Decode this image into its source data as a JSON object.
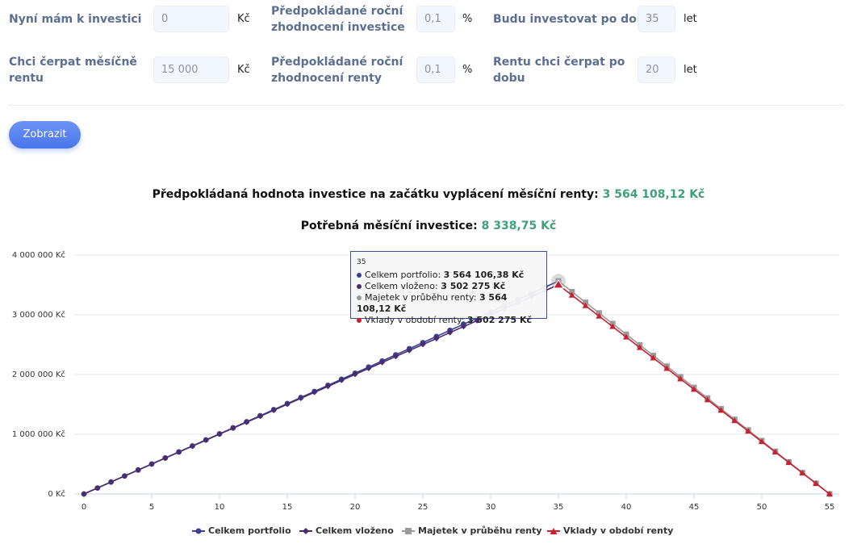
{
  "form": {
    "row1": {
      "invest_now_label": "Nyní mám k investici",
      "invest_now_value": "0",
      "invest_now_unit": "Kč",
      "rate_invest_label_l1": "Předpokládané roční",
      "rate_invest_label_l2": "zhodnocení investice",
      "rate_invest_value": "0,1",
      "rate_invest_unit": "%",
      "invest_years_label": "Budu investovat po dobu",
      "invest_years_value": "35",
      "invest_years_unit": "let"
    },
    "row2": {
      "rent_label_l1": "Chci čerpat měsíčně",
      "rent_label_l2": "rentu",
      "rent_value": "15 000",
      "rent_unit": "Kč",
      "rate_rent_label_l1": "Předpokládané roční",
      "rate_rent_label_l2": "zhodnocení renty",
      "rate_rent_value": "0,1",
      "rate_rent_unit": "%",
      "rent_years_label_l1": "Rentu chci čerpat po",
      "rent_years_label_l2": "dobu",
      "rent_years_value": "20",
      "rent_years_unit": "let"
    },
    "submit_label": "Zobrazit"
  },
  "results": {
    "value_label": "Předpokládaná hodnota investice na začátku vyplácení měsíční renty:",
    "value": "3 564 108,12 Kč",
    "monthly_label": "Potřebná měsíční investice:",
    "monthly": "8 338,75 Kč"
  },
  "tooltip": {
    "x": "35",
    "rows": [
      {
        "label": "Celkem portfolio:",
        "value": "3 564 106,38 Kč",
        "color": "#3a3f8f"
      },
      {
        "label": "Celkem vloženo:",
        "value": "3 502 275 Kč",
        "color": "#4b2d6e"
      },
      {
        "label": "Majetek v průběhu renty:",
        "value": "3 564 108,12 Kč",
        "color": "#9a9a9a"
      },
      {
        "label": "Vklady v období renty:",
        "value": "3 502 275 Kč",
        "color": "#c8202f"
      }
    ]
  },
  "chart_data": {
    "type": "line",
    "x_range": [
      0,
      55
    ],
    "x_ticks": [
      "0",
      "5",
      "10",
      "15",
      "20",
      "25",
      "30",
      "35",
      "40",
      "45",
      "50",
      "55"
    ],
    "ylim": [
      0,
      4000000
    ],
    "y_ticks": [
      "0 Kč",
      "1 000 000 Kč",
      "2 000 000 Kč",
      "3 000 000 Kč",
      "4 000 000 Kč"
    ],
    "grid": true,
    "legend_position": "bottom",
    "series": [
      {
        "name": "Celkem portfolio",
        "color": "#3a3f8f",
        "marker": "circle",
        "x": [
          0,
          1,
          2,
          3,
          4,
          5,
          6,
          7,
          8,
          9,
          10,
          11,
          12,
          13,
          14,
          15,
          16,
          17,
          18,
          19,
          20,
          21,
          22,
          23,
          24,
          25,
          26,
          27,
          28,
          29,
          30,
          31,
          32,
          33,
          34,
          35
        ],
        "values": [
          0,
          100160,
          200420,
          300780,
          401240,
          501800,
          602460,
          703220,
          804080,
          905040,
          1006100,
          1107260,
          1208520,
          1309880,
          1411340,
          1512900,
          1614560,
          1716320,
          1818180,
          1920140,
          2022200,
          2124360,
          2226620,
          2328980,
          2431440,
          2534000,
          2636660,
          2739420,
          2842280,
          2945240,
          3048300,
          3151460,
          3254720,
          3358080,
          3461540,
          3564106
        ]
      },
      {
        "name": "Celkem vloženo",
        "color": "#4b2d6e",
        "marker": "diamond",
        "x": [
          0,
          1,
          2,
          3,
          4,
          5,
          6,
          7,
          8,
          9,
          10,
          11,
          12,
          13,
          14,
          15,
          16,
          17,
          18,
          19,
          20,
          21,
          22,
          23,
          24,
          25,
          26,
          27,
          28,
          29,
          30,
          31,
          32,
          33,
          34,
          35
        ],
        "values": [
          0,
          100065,
          200130,
          300195,
          400260,
          500325,
          600390,
          700455,
          800520,
          900585,
          1000650,
          1100715,
          1200780,
          1300845,
          1400910,
          1500975,
          1601040,
          1701105,
          1801170,
          1901235,
          2001300,
          2101365,
          2201430,
          2301495,
          2401560,
          2501625,
          2601690,
          2701755,
          2801820,
          2901885,
          3001950,
          3102015,
          3202080,
          3302145,
          3402210,
          3502275
        ]
      },
      {
        "name": "Majetek v průběhu renty",
        "color": "#9a9a9a",
        "marker": "square",
        "x": [
          35,
          36,
          37,
          38,
          39,
          40,
          41,
          42,
          43,
          44,
          45,
          46,
          47,
          48,
          49,
          50,
          51,
          52,
          53,
          54,
          55
        ],
        "values": [
          3564108,
          3385900,
          3207700,
          3029500,
          2851300,
          2673100,
          2494900,
          2316700,
          2138500,
          1960300,
          1782100,
          1603900,
          1425700,
          1247500,
          1069300,
          891100,
          712900,
          534700,
          356500,
          178300,
          0
        ]
      },
      {
        "name": "Vklady v období renty",
        "color": "#c8202f",
        "marker": "triangle",
        "x": [
          35,
          36,
          37,
          38,
          39,
          40,
          41,
          42,
          43,
          44,
          45,
          46,
          47,
          48,
          49,
          50,
          51,
          52,
          53,
          54,
          55
        ],
        "values": [
          3502275,
          3327200,
          3152100,
          2977000,
          2801800,
          2626700,
          2451600,
          2276500,
          2101400,
          1926200,
          1751100,
          1576000,
          1400900,
          1225800,
          1050700,
          875600,
          700500,
          525400,
          350300,
          175100,
          0
        ]
      }
    ]
  }
}
